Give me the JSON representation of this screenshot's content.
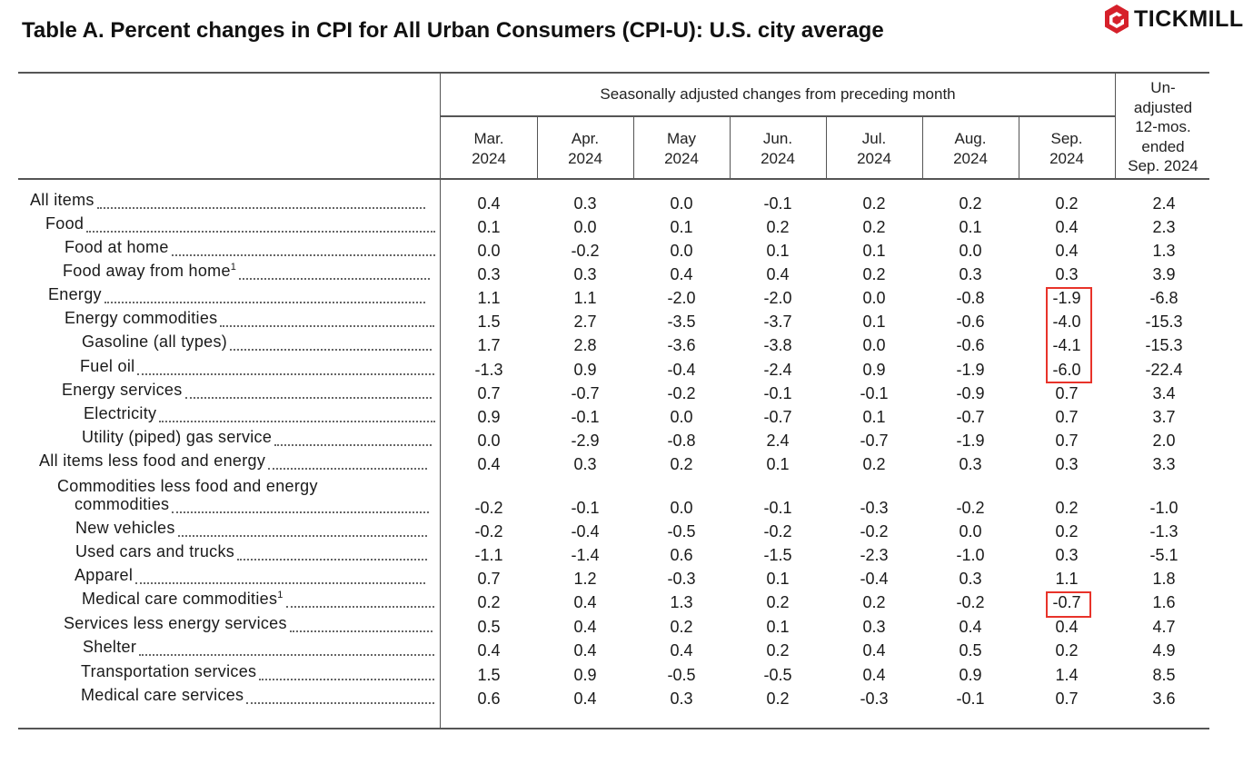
{
  "title": "Table A. Percent changes in CPI for All Urban Consumers (CPI-U): U.S. city average",
  "brand": {
    "name": "TICKMILL",
    "logo_icon": "tickmill-hexagon-logo-icon",
    "logo_color": "#d6202a"
  },
  "table": {
    "seasonal_header": "Seasonally adjusted changes from preceding month",
    "columns": [
      {
        "month": "Mar.",
        "year": "2024"
      },
      {
        "month": "Apr.",
        "year": "2024"
      },
      {
        "month": "May",
        "year": "2024"
      },
      {
        "month": "Jun.",
        "year": "2024"
      },
      {
        "month": "Jul.",
        "year": "2024"
      },
      {
        "month": "Aug.",
        "year": "2024"
      },
      {
        "month": "Sep.",
        "year": "2024"
      }
    ],
    "unadjusted_header": [
      "Un-",
      "adjusted",
      "12-mos.",
      "ended",
      "Sep. 2024"
    ],
    "rows": [
      {
        "label": "All items",
        "values": [
          "0.4",
          "0.3",
          "0.0",
          "-0.1",
          "0.2",
          "0.2",
          "0.2",
          "2.4"
        ]
      },
      {
        "label": "Food",
        "values": [
          "0.1",
          "0.0",
          "0.1",
          "0.2",
          "0.2",
          "0.1",
          "0.4",
          "2.3"
        ]
      },
      {
        "label": "Food at home",
        "values": [
          "0.0",
          "-0.2",
          "0.0",
          "0.1",
          "0.1",
          "0.0",
          "0.4",
          "1.3"
        ]
      },
      {
        "label": "Food away from home",
        "note": "1",
        "values": [
          "0.3",
          "0.3",
          "0.4",
          "0.4",
          "0.2",
          "0.3",
          "0.3",
          "3.9"
        ]
      },
      {
        "label": "Energy",
        "values": [
          "1.1",
          "1.1",
          "-2.0",
          "-2.0",
          "0.0",
          "-0.8",
          "-1.9",
          "-6.8"
        ]
      },
      {
        "label": "Energy commodities",
        "values": [
          "1.5",
          "2.7",
          "-3.5",
          "-3.7",
          "0.1",
          "-0.6",
          "-4.0",
          "-15.3"
        ]
      },
      {
        "label": "Gasoline (all types)",
        "values": [
          "1.7",
          "2.8",
          "-3.6",
          "-3.8",
          "0.0",
          "-0.6",
          "-4.1",
          "-15.3"
        ]
      },
      {
        "label": "Fuel oil",
        "values": [
          "-1.3",
          "0.9",
          "-0.4",
          "-2.4",
          "0.9",
          "-1.9",
          "-6.0",
          "-22.4"
        ]
      },
      {
        "label": "Energy services",
        "values": [
          "0.7",
          "-0.7",
          "-0.2",
          "-0.1",
          "-0.1",
          "-0.9",
          "0.7",
          "3.4"
        ]
      },
      {
        "label": "Electricity",
        "values": [
          "0.9",
          "-0.1",
          "0.0",
          "-0.7",
          "0.1",
          "-0.7",
          "0.7",
          "3.7"
        ]
      },
      {
        "label": "Utility (piped) gas service",
        "values": [
          "0.0",
          "-2.9",
          "-0.8",
          "2.4",
          "-0.7",
          "-1.9",
          "0.7",
          "2.0"
        ]
      },
      {
        "label": "All items less food and energy",
        "values": [
          "0.4",
          "0.3",
          "0.2",
          "0.1",
          "0.2",
          "0.3",
          "0.3",
          "3.3"
        ]
      },
      {
        "label": "Commodities less food and energy",
        "label2": "commodities",
        "values": [
          "-0.2",
          "-0.1",
          "0.0",
          "-0.1",
          "-0.3",
          "-0.2",
          "0.2",
          "-1.0"
        ]
      },
      {
        "label": "New vehicles",
        "values": [
          "-0.2",
          "-0.4",
          "-0.5",
          "-0.2",
          "-0.2",
          "0.0",
          "0.2",
          "-1.3"
        ]
      },
      {
        "label": "Used cars and trucks",
        "values": [
          "-1.1",
          "-1.4",
          "0.6",
          "-1.5",
          "-2.3",
          "-1.0",
          "0.3",
          "-5.1"
        ]
      },
      {
        "label": "Apparel",
        "values": [
          "0.7",
          "1.2",
          "-0.3",
          "0.1",
          "-0.4",
          "0.3",
          "1.1",
          "1.8"
        ]
      },
      {
        "label": "Medical care commodities",
        "note": "1",
        "values": [
          "0.2",
          "0.4",
          "1.3",
          "0.2",
          "0.2",
          "-0.2",
          "-0.7",
          "1.6"
        ]
      },
      {
        "label": "Services less energy services",
        "values": [
          "0.5",
          "0.4",
          "0.2",
          "0.1",
          "0.3",
          "0.4",
          "0.4",
          "4.7"
        ]
      },
      {
        "label": "Shelter",
        "values": [
          "0.4",
          "0.4",
          "0.4",
          "0.2",
          "0.4",
          "0.5",
          "0.2",
          "4.9"
        ]
      },
      {
        "label": "Transportation services",
        "values": [
          "1.5",
          "0.9",
          "-0.5",
          "-0.5",
          "0.4",
          "0.9",
          "1.4",
          "8.5"
        ]
      },
      {
        "label": "Medical care services",
        "values": [
          "0.6",
          "0.4",
          "0.3",
          "0.2",
          "-0.3",
          "-0.1",
          "0.7",
          "3.6"
        ]
      }
    ],
    "highlight_color": "#e8332a"
  }
}
